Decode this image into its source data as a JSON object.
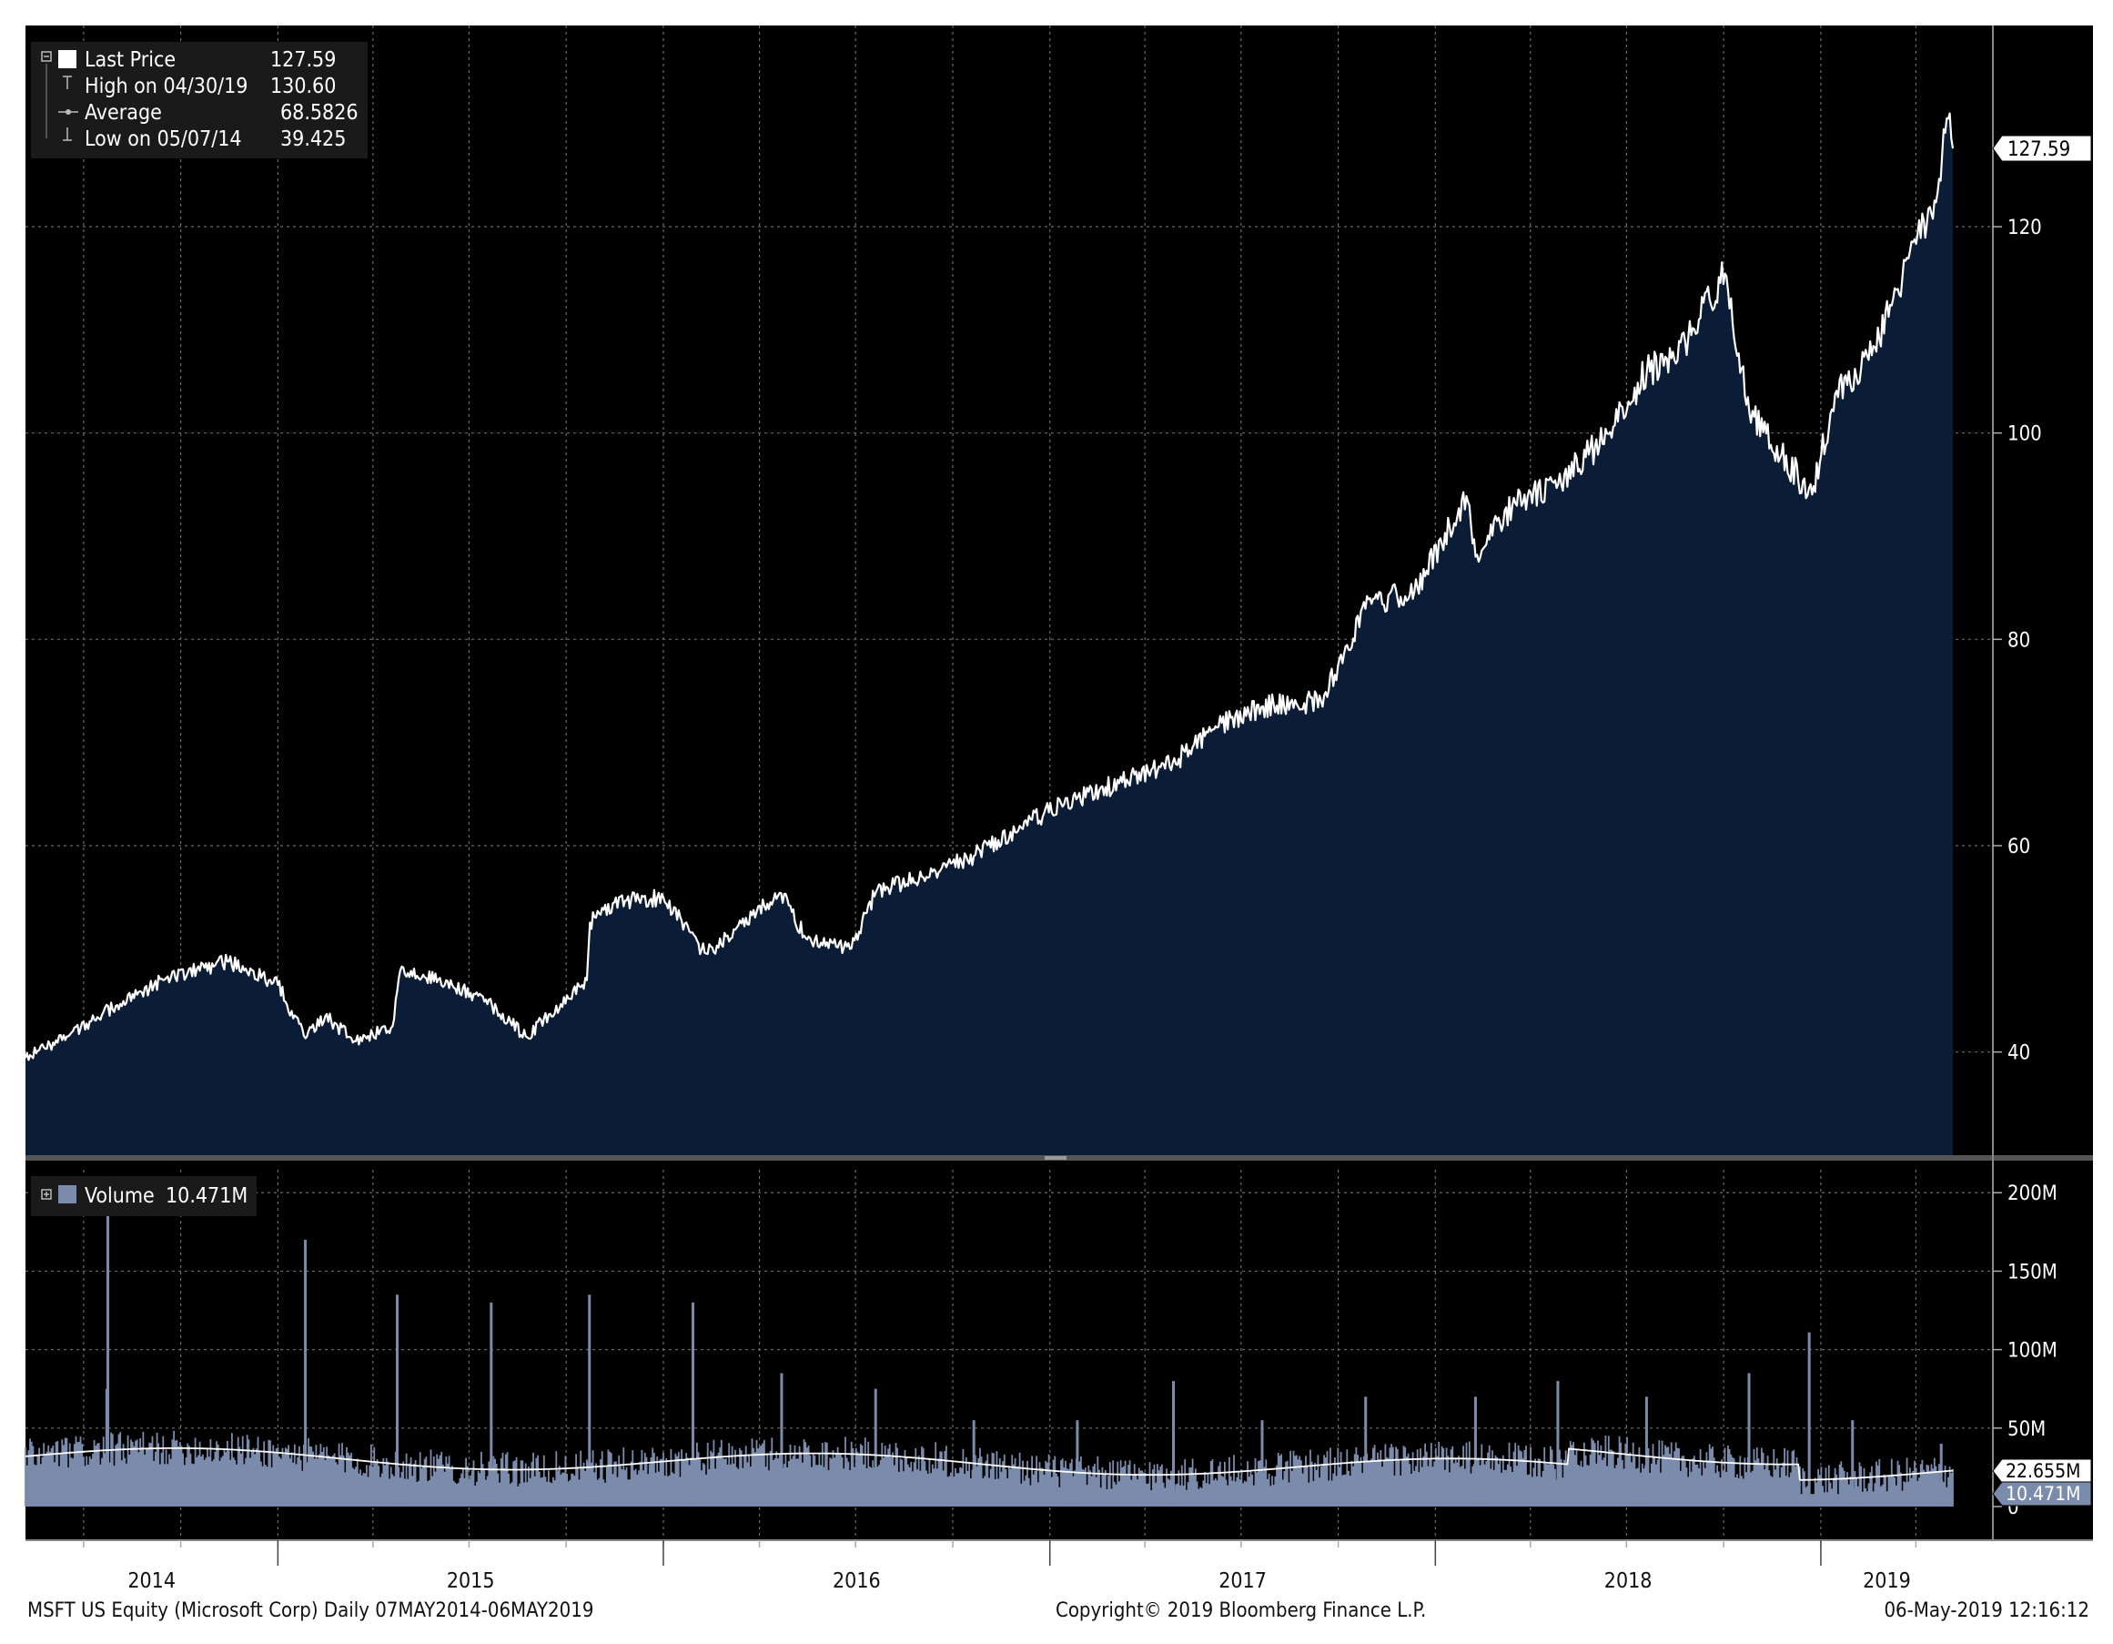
{
  "colors": {
    "background": "#000000",
    "price_fill": "#0a1c36",
    "price_line": "#ffffff",
    "volume_fill": "#7b8bac",
    "grid": "#6a6a6a",
    "text": "#ffffff",
    "footer_text": "#111111"
  },
  "legend": {
    "last_price_label": "Last Price",
    "last_price_value": "127.59",
    "high_label": "High on 04/30/19",
    "high_value": "130.60",
    "average_label": "Average",
    "average_value": "68.5826",
    "low_label": "Low on 05/07/14",
    "low_value": "39.425"
  },
  "volume_legend": {
    "label": "Volume",
    "value": "10.471M"
  },
  "price_tag": "127.59",
  "volume_tags": [
    "22.655M",
    "10.471M"
  ],
  "footer": {
    "left": "MSFT US Equity (Microsoft Corp)  Daily 07MAY2014-06MAY2019",
    "center": "Copyright© 2019 Bloomberg Finance L.P.",
    "right": "06-May-2019 12:16:12"
  },
  "chart_data": [
    {
      "type": "area",
      "series": [
        {
          "name": "Last Price",
          "x": [
            "2014-05-07",
            "2014-06-15",
            "2014-08-01",
            "2014-09-15",
            "2014-11-15",
            "2015-01-01",
            "2015-01-26",
            "2015-02-15",
            "2015-03-15",
            "2015-04-20",
            "2015-04-27",
            "2015-06-15",
            "2015-07-23",
            "2015-08-24",
            "2015-10-21",
            "2015-10-23",
            "2015-11-15",
            "2016-01-01",
            "2016-02-10",
            "2016-04-21",
            "2016-05-15",
            "2016-06-27",
            "2016-07-20",
            "2016-09-15",
            "2016-10-21",
            "2016-12-15",
            "2017-01-26",
            "2017-04-27",
            "2017-06-09",
            "2017-07-21",
            "2017-09-15",
            "2017-10-27",
            "2017-12-15",
            "2018-01-31",
            "2018-02-08",
            "2018-03-15",
            "2018-04-27",
            "2018-06-15",
            "2018-07-20",
            "2018-08-15",
            "2018-10-03",
            "2018-10-25",
            "2018-12-24",
            "2019-01-15",
            "2019-02-15",
            "2019-03-15",
            "2019-04-24",
            "2019-04-30",
            "2019-05-06"
          ],
          "values": [
            39.425,
            41.5,
            44.5,
            47.0,
            48.8,
            46.5,
            41.5,
            43.5,
            41.0,
            42.5,
            48.0,
            46.5,
            44.5,
            41.5,
            47.0,
            52.5,
            54.5,
            55.0,
            49.5,
            55.5,
            51.0,
            50.0,
            55.5,
            57.5,
            59.0,
            62.5,
            64.5,
            68.0,
            71.5,
            73.5,
            74.0,
            83.0,
            85.0,
            94.0,
            88.0,
            93.0,
            95.0,
            100.0,
            106.0,
            107.0,
            115.6,
            102.0,
            94.0,
            104.0,
            107.0,
            114.0,
            124.0,
            130.6,
            127.59
          ]
        }
      ],
      "ylim": [
        30,
        139.5
      ],
      "y_ticks": [
        40,
        60,
        80,
        100,
        120
      ],
      "x_range": [
        "2014-05-07",
        "2019-05-06"
      ],
      "x_tick_labels": [
        "2014",
        "2015",
        "2016",
        "2017",
        "2018",
        "2019"
      ],
      "legend_position": "top-left",
      "grid": true
    },
    {
      "type": "bar",
      "series": [
        {
          "name": "Volume",
          "x": [
            "2014-07-23",
            "2014-07-24",
            "2015-01-27",
            "2015-04-24",
            "2015-07-22",
            "2015-10-23",
            "2016-01-29",
            "2016-04-22",
            "2016-07-20",
            "2016-10-21",
            "2017-01-27",
            "2017-04-28",
            "2017-07-21",
            "2017-10-27",
            "2018-02-08",
            "2018-04-27",
            "2018-07-20",
            "2018-10-25",
            "2018-12-21",
            "2019-01-31",
            "2019-04-25"
          ],
          "values": [
            75,
            195,
            170,
            135,
            130,
            135,
            130,
            85,
            75,
            55,
            55,
            80,
            55,
            70,
            70,
            80,
            70,
            85,
            111,
            55,
            40
          ]
        }
      ],
      "ylim": [
        0,
        210
      ],
      "y_tick_labels": [
        "0",
        "50M",
        "100M",
        "150M",
        "200M"
      ],
      "legend_position": "top-left"
    }
  ]
}
